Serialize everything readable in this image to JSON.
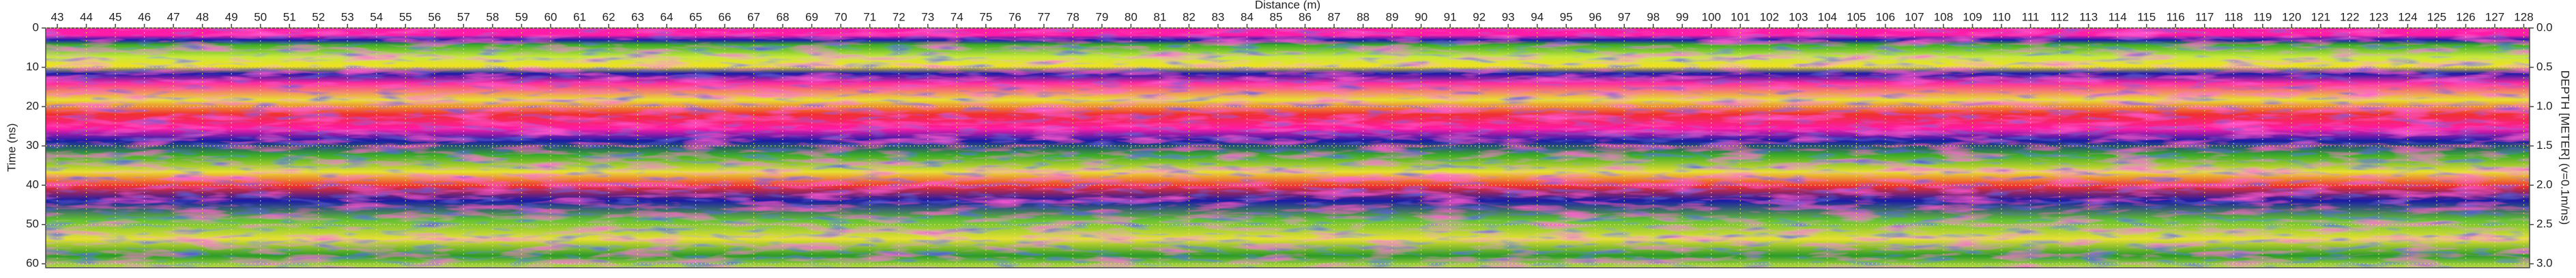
{
  "chart_data": {
    "type": "radargram",
    "x_label": "Distance (m)",
    "y_label": "Time (ns)",
    "y2_label": "DEPTH [METER] (v=0.1m/ns)",
    "xlim": [
      42.6,
      128.2
    ],
    "xticks": [
      43,
      44,
      45,
      46,
      47,
      48,
      49,
      50,
      51,
      52,
      53,
      54,
      55,
      56,
      57,
      58,
      59,
      60,
      61,
      62,
      63,
      64,
      65,
      66,
      67,
      68,
      69,
      70,
      71,
      72,
      73,
      74,
      75,
      76,
      77,
      78,
      79,
      80,
      81,
      82,
      83,
      84,
      85,
      86,
      87,
      88,
      89,
      90,
      91,
      92,
      93,
      94,
      95,
      96,
      97,
      98,
      99,
      100,
      101,
      102,
      103,
      104,
      105,
      106,
      107,
      108,
      109,
      110,
      111,
      112,
      113,
      114,
      115,
      116,
      117,
      118,
      119,
      120,
      121,
      122,
      123,
      124,
      125,
      126,
      127,
      128
    ],
    "ylim": [
      0,
      61
    ],
    "yticks": [
      0,
      10,
      20,
      30,
      40,
      50,
      60
    ],
    "y2lim": [
      0,
      3.05
    ],
    "y2ticks": [
      {
        "value": 0,
        "label": "0.0"
      },
      0.5,
      {
        "value": 1,
        "label": "1.0"
      },
      1.5,
      {
        "value": 2,
        "label": "2.0"
      },
      2.5,
      {
        "value": 3,
        "label": "3.0"
      }
    ],
    "grid": true
  }
}
